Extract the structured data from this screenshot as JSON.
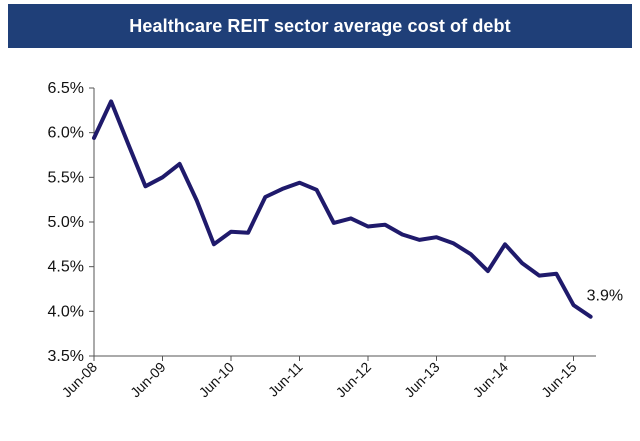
{
  "title": "Healthcare REIT sector average cost of debt",
  "colors": {
    "title_bg": "#1f3f78",
    "title_text": "#ffffff",
    "series_line": "#1f1a6b",
    "axis": "#555555"
  },
  "chart_data": {
    "type": "line",
    "title": "Healthcare REIT sector average cost of debt",
    "xlabel": "",
    "ylabel": "",
    "ylim": [
      3.5,
      6.5
    ],
    "y_unit": "%",
    "grid": false,
    "y_ticks": [
      "3.5%",
      "4.0%",
      "4.5%",
      "5.0%",
      "5.5%",
      "6.0%",
      "6.5%"
    ],
    "y_tick_values": [
      3.5,
      4.0,
      4.5,
      5.0,
      5.5,
      6.0,
      6.5
    ],
    "x_ticks": [
      "Jun-08",
      "Jun-09",
      "Jun-10",
      "Jun-11",
      "Jun-12",
      "Jun-13",
      "Jun-14",
      "Jun-15"
    ],
    "series": [
      {
        "values": [
          5.94,
          6.35,
          5.87,
          5.4,
          5.5,
          5.65,
          5.24,
          4.75,
          4.89,
          4.88,
          5.28,
          5.37,
          5.44,
          5.36,
          4.99,
          5.04,
          4.95,
          4.97,
          4.86,
          4.8,
          4.83,
          4.76,
          4.64,
          4.45,
          4.75,
          4.54,
          4.4,
          4.42,
          4.07,
          3.94
        ]
      }
    ],
    "annotations": [
      {
        "text": "3.9%",
        "target": "last_point"
      }
    ]
  }
}
